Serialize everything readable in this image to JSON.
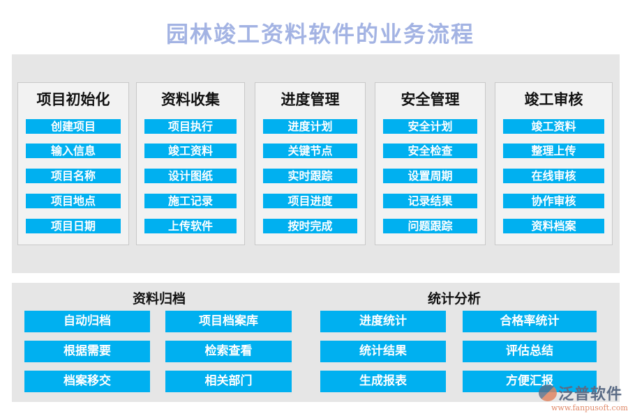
{
  "title": "园林竣工资料软件的业务流程",
  "columns": [
    {
      "heading": "项目初始化",
      "items": [
        "创建项目",
        "输入信息",
        "项目名称",
        "项目地点",
        "项目日期"
      ]
    },
    {
      "heading": "资料收集",
      "items": [
        "项目执行",
        "竣工资料",
        "设计图纸",
        "施工记录",
        "上传软件"
      ]
    },
    {
      "heading": "进度管理",
      "items": [
        "进度计划",
        "关键节点",
        "实时跟踪",
        "项目进度",
        "按时完成"
      ]
    },
    {
      "heading": "安全管理",
      "items": [
        "安全计划",
        "安全检查",
        "设置周期",
        "记录结果",
        "问题跟踪"
      ]
    },
    {
      "heading": "竣工审核",
      "items": [
        "竣工资料",
        "整理上传",
        "在线审核",
        "协作审核",
        "资料档案"
      ]
    }
  ],
  "archive": {
    "heading": "资料归档",
    "buttons": [
      "自动归档",
      "项目档案库",
      "根据需要",
      "检索查看",
      "档案移交",
      "相关部门"
    ]
  },
  "stats": {
    "heading": "统计分析",
    "buttons": [
      "进度统计",
      "合格率统计",
      "统计结果",
      "评估总结",
      "生成报表",
      "方便汇报"
    ]
  },
  "logo": {
    "name": "泛普软件",
    "url": "www.fanpusoft.com"
  },
  "colors": {
    "accent": "#00b0f0",
    "title": "#a3b3e3",
    "panel": "#e6e6e6"
  }
}
